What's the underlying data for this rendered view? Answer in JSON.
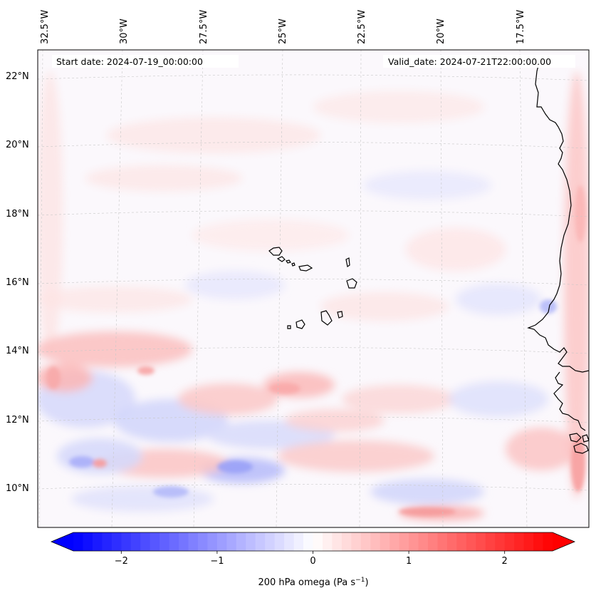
{
  "map": {
    "start_date": "Start date: 2024-07-19_00:00:00",
    "valid_date": "Valid_date: 2024-07-21T22:00:00.00",
    "lon_labels": [
      "32.5°W",
      "30°W",
      "27.5°W",
      "25°W",
      "22.5°W",
      "20°W",
      "17.5°W"
    ],
    "lat_labels": [
      "22°N",
      "20°N",
      "18°N",
      "16°N",
      "14°N",
      "12°N",
      "10°N"
    ],
    "coastline_color": "#000000",
    "gridline_color": "#c8c8c8"
  },
  "colorbar": {
    "label_main": "200 hPa omega (Pa s",
    "label_sup": "−1",
    "label_end": ")",
    "ticks": [
      "−2",
      "−1",
      "0",
      "1",
      "2"
    ],
    "vmin": -2.5,
    "vmax": 2.5,
    "cmap": "bwr",
    "extend": "both",
    "color_min": "#0000ff",
    "color_mid": "#ffffff",
    "color_max": "#ff0000"
  }
}
